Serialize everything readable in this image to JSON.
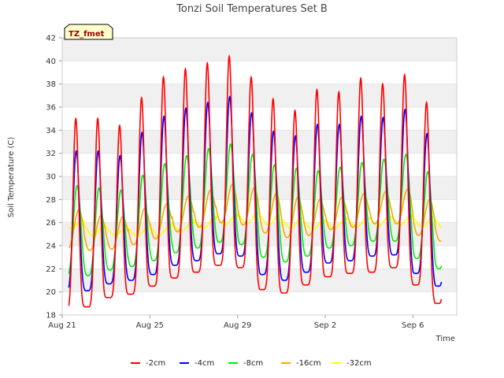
{
  "chart_data": {
    "type": "line",
    "title": "Tonzi Soil Temperatures Set B",
    "xlabel": "Time",
    "ylabel": "Soil Temperature (C)",
    "badge": "TZ_fmet",
    "ylim": [
      18,
      42
    ],
    "yticks": [
      18,
      20,
      22,
      24,
      26,
      28,
      30,
      32,
      34,
      36,
      38,
      40,
      42
    ],
    "xlim_days": [
      0,
      18
    ],
    "xticks": [
      {
        "day": 0,
        "label": "Aug 21"
      },
      {
        "day": 4,
        "label": "Aug 25"
      },
      {
        "day": 8,
        "label": "Aug 29"
      },
      {
        "day": 12,
        "label": "Sep 2"
      },
      {
        "day": 16,
        "label": "Sep 6"
      }
    ],
    "grid": "horizontal bands",
    "legend_position": "bottom",
    "start_day": 0.3,
    "end_day": 17.3,
    "series": [
      {
        "name": "-2cm",
        "color": "#ff0000",
        "peaks": [
          35.0,
          35.0,
          34.4,
          36.8,
          38.6,
          39.3,
          39.8,
          40.4,
          38.6,
          36.7,
          35.7,
          37.5,
          37.3,
          38.5,
          38.0,
          38.8,
          36.4,
          35.1
        ],
        "troughs": [
          18.4,
          18.7,
          19.5,
          19.8,
          20.5,
          21.2,
          21.7,
          22.3,
          22.1,
          20.2,
          19.9,
          20.6,
          21.3,
          21.6,
          21.7,
          22.1,
          20.6,
          19.0
        ]
      },
      {
        "name": "-4cm",
        "color": "#0000ff",
        "peaks": [
          32.2,
          32.2,
          31.8,
          33.8,
          35.2,
          35.9,
          36.4,
          36.9,
          35.5,
          33.9,
          33.5,
          34.5,
          34.5,
          35.2,
          35.1,
          35.8,
          33.7,
          32.6
        ],
        "troughs": [
          20.0,
          20.1,
          20.7,
          21.0,
          21.5,
          22.3,
          22.7,
          23.3,
          23.1,
          21.5,
          21.0,
          21.7,
          22.5,
          22.7,
          23.1,
          23.2,
          21.6,
          20.5
        ]
      },
      {
        "name": "-8cm",
        "color": "#00ee00",
        "peaks": [
          29.2,
          29.0,
          28.8,
          30.1,
          31.1,
          31.8,
          32.4,
          32.8,
          31.9,
          31.0,
          30.7,
          30.5,
          30.8,
          31.2,
          31.5,
          31.9,
          30.4,
          29.5
        ],
        "troughs": [
          21.3,
          21.4,
          21.9,
          22.2,
          22.7,
          23.4,
          23.8,
          24.3,
          24.1,
          23.0,
          22.6,
          23.1,
          23.8,
          24.0,
          24.4,
          24.4,
          22.9,
          22.0
        ]
      },
      {
        "name": "-16cm",
        "color": "#ffa500",
        "peaks": [
          27.1,
          26.6,
          26.5,
          27.2,
          27.6,
          28.3,
          28.8,
          29.3,
          29.0,
          28.5,
          28.2,
          28.0,
          28.2,
          28.5,
          28.7,
          28.9,
          28.0,
          27.3
        ],
        "troughs": [
          23.8,
          23.6,
          23.7,
          24.1,
          24.6,
          25.2,
          25.6,
          26.0,
          25.8,
          25.1,
          24.7,
          24.9,
          25.4,
          25.6,
          25.9,
          25.9,
          24.9,
          24.4
        ]
      },
      {
        "name": "-32cm",
        "color": "#ffff00",
        "peaks": [
          26.2,
          25.8,
          25.6,
          25.6,
          25.7,
          26.0,
          26.3,
          26.6,
          26.8,
          26.7,
          26.4,
          26.2,
          26.3,
          26.4,
          26.5,
          26.6,
          26.5,
          26.3
        ],
        "troughs": [
          25.5,
          24.8,
          24.9,
          24.8,
          24.9,
          25.2,
          25.5,
          25.8,
          25.9,
          25.8,
          25.5,
          25.4,
          25.5,
          25.6,
          25.7,
          25.8,
          25.6,
          25.4
        ]
      }
    ]
  }
}
